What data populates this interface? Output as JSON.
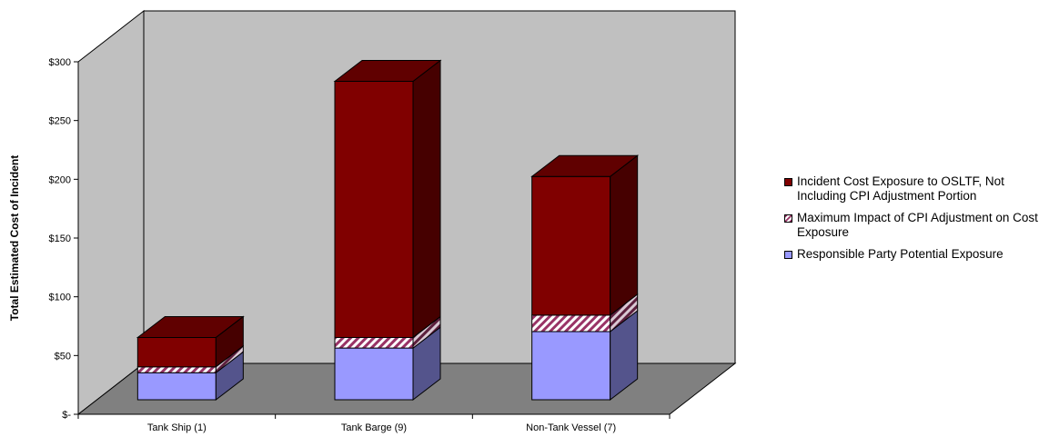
{
  "chart_data": {
    "type": "bar",
    "stacked": true,
    "three_d": true,
    "categories": [
      "Tank Ship (1)",
      "Tank Barge (9)",
      "Non-Tank Vessel (7)"
    ],
    "series": [
      {
        "name": "Responsible Party Potential Exposure",
        "values": [
          23,
          44,
          58
        ],
        "color": "#9999ff",
        "pattern": "solid"
      },
      {
        "name": "Maximum Impact of CPI Adjustment on Cost Exposure",
        "values": [
          5,
          9,
          14
        ],
        "color": "#993366",
        "pattern": "diagonal-stripes"
      },
      {
        "name": "Incident Cost Exposure to OSLTF, Not Including CPI Adjustment Portion",
        "values": [
          25,
          218,
          118
        ],
        "color": "#800000",
        "pattern": "solid"
      }
    ],
    "xlabel": "",
    "ylabel": "Total Estimated Cost of Incident",
    "ylim": [
      0,
      300
    ],
    "yticks": [
      0,
      50,
      100,
      150,
      200,
      250,
      300
    ],
    "ytick_labels": [
      "$-",
      "$50",
      "$100",
      "$150",
      "$200",
      "$250",
      "$300"
    ],
    "grid": false,
    "legend_position": "right",
    "colors": {
      "back_wall": "#c0c0c0",
      "floor": "#808080"
    }
  }
}
